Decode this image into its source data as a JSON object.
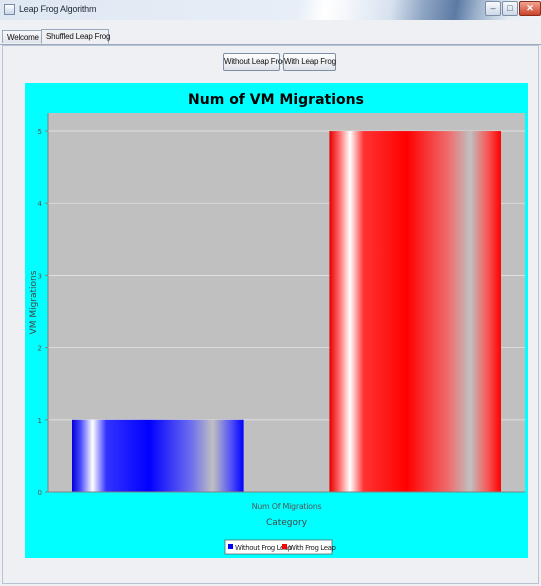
{
  "window": {
    "title": "Leap Frog Algorithm"
  },
  "tabs": [
    {
      "label": "Welcome"
    },
    {
      "label": "Shuffled Leap Frog"
    }
  ],
  "toolbar": {
    "without_label": "Without Leap Frog",
    "with_label": "With Leap Frog"
  },
  "chart_data": {
    "type": "bar",
    "title": "Num of VM Migrations",
    "xlabel": "Category",
    "ylabel": "VM Migrations",
    "categories": [
      "Num Of Migrations"
    ],
    "series": [
      {
        "name": "Without Frog Leap",
        "values": [
          1
        ],
        "color": "#0000ff"
      },
      {
        "name": "With Frog Leap",
        "values": [
          5
        ],
        "color": "#ff0000"
      }
    ],
    "ylim": [
      0,
      5.25
    ],
    "yticks": [
      0,
      1,
      2,
      3,
      4,
      5
    ],
    "grid": true,
    "background": "#00ffff",
    "plot_background": "#c0c0c0",
    "legend_position": "bottom"
  }
}
